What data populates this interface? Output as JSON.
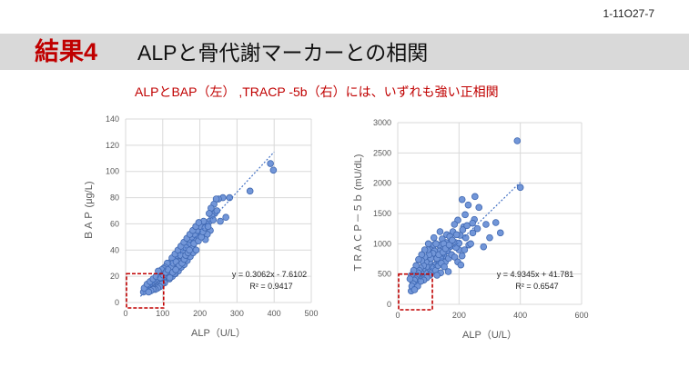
{
  "slide_id": "1-11O27-7",
  "title": {
    "tag": "結果4",
    "main": "ALPと骨代謝マーカーとの相関"
  },
  "subtitle": "ALPとBAP（左） ,TRACP -5b（右）には、いずれも強い正相関",
  "colors": {
    "accent_red": "#c00000",
    "point_fill": "#7296d8",
    "point_stroke": "#3f67b0",
    "trend": "#4472c4",
    "grid": "#d9d9d9"
  },
  "chart_data": [
    {
      "type": "scatter",
      "title": "",
      "xlabel": "ALP（U/L）",
      "ylabel": "ＢＡＰ (μg/L)",
      "xlim": [
        0,
        500
      ],
      "ylim": [
        0,
        140
      ],
      "xticks": [
        0,
        100,
        200,
        300,
        400,
        500
      ],
      "yticks": [
        0,
        20,
        40,
        60,
        80,
        100,
        120,
        140
      ],
      "trendline": {
        "slope": 0.3062,
        "intercept": -7.6102,
        "x_range": [
          40,
          400
        ]
      },
      "equation": "y = 0.3062x - 7.6102",
      "r2": "R² = 0.9417",
      "highlight_box": {
        "x": [
          0,
          100
        ],
        "y": [
          0,
          22
        ]
      },
      "points": [
        [
          390,
          106
        ],
        [
          398,
          101
        ],
        [
          335,
          85
        ],
        [
          280,
          80
        ],
        [
          262,
          80
        ],
        [
          250,
          79
        ],
        [
          244,
          79
        ],
        [
          238,
          75
        ],
        [
          230,
          72
        ],
        [
          240,
          68
        ],
        [
          232,
          66
        ],
        [
          226,
          62
        ],
        [
          218,
          60
        ],
        [
          212,
          58
        ],
        [
          205,
          52
        ],
        [
          198,
          56
        ],
        [
          192,
          50
        ],
        [
          188,
          47
        ],
        [
          182,
          44
        ],
        [
          176,
          42
        ],
        [
          170,
          45
        ],
        [
          165,
          40
        ],
        [
          160,
          37
        ],
        [
          156,
          35
        ],
        [
          150,
          33
        ],
        [
          145,
          31
        ],
        [
          140,
          29
        ],
        [
          136,
          27
        ],
        [
          132,
          26
        ],
        [
          128,
          25
        ],
        [
          124,
          24
        ],
        [
          120,
          28
        ],
        [
          116,
          22
        ],
        [
          112,
          21
        ],
        [
          108,
          20
        ],
        [
          104,
          19
        ],
        [
          100,
          18
        ],
        [
          96,
          17
        ],
        [
          92,
          16
        ],
        [
          88,
          18
        ],
        [
          84,
          15
        ],
        [
          80,
          14
        ],
        [
          76,
          13
        ],
        [
          72,
          14
        ],
        [
          68,
          12
        ],
        [
          64,
          11
        ],
        [
          60,
          12
        ],
        [
          56,
          10
        ],
        [
          52,
          9
        ],
        [
          48,
          8
        ],
        [
          110,
          26
        ],
        [
          115,
          29
        ],
        [
          122,
          31
        ],
        [
          130,
          33
        ],
        [
          138,
          36
        ],
        [
          146,
          38
        ],
        [
          154,
          40
        ],
        [
          162,
          42
        ],
        [
          170,
          48
        ],
        [
          178,
          50
        ],
        [
          186,
          52
        ],
        [
          194,
          55
        ],
        [
          202,
          58
        ],
        [
          210,
          62
        ],
        [
          100,
          24
        ],
        [
          95,
          21
        ],
        [
          90,
          22
        ],
        [
          85,
          19
        ],
        [
          80,
          17
        ],
        [
          75,
          16
        ],
        [
          70,
          15
        ],
        [
          65,
          14
        ],
        [
          60,
          13
        ],
        [
          55,
          12
        ],
        [
          118,
          18
        ],
        [
          126,
          20
        ],
        [
          134,
          22
        ],
        [
          142,
          24
        ],
        [
          150,
          27
        ],
        [
          158,
          29
        ],
        [
          166,
          32
        ],
        [
          174,
          35
        ],
        [
          182,
          38
        ],
        [
          190,
          40
        ],
        [
          228,
          55
        ],
        [
          220,
          52
        ],
        [
          236,
          63
        ],
        [
          215,
          48
        ],
        [
          105,
          15
        ],
        [
          98,
          14
        ],
        [
          92,
          12
        ],
        [
          86,
          11
        ],
        [
          80,
          10
        ],
        [
          74,
          10
        ],
        [
          68,
          9
        ],
        [
          62,
          8
        ],
        [
          112,
          30
        ],
        [
          106,
          27
        ],
        [
          102,
          26
        ],
        [
          97,
          25
        ],
        [
          125,
          34
        ],
        [
          133,
          37
        ],
        [
          141,
          40
        ],
        [
          149,
          43
        ],
        [
          157,
          46
        ],
        [
          165,
          49
        ],
        [
          173,
          52
        ],
        [
          181,
          55
        ],
        [
          189,
          58
        ],
        [
          197,
          61
        ],
        [
          120,
          22
        ],
        [
          124,
          27
        ],
        [
          128,
          30
        ],
        [
          132,
          22
        ],
        [
          136,
          31
        ],
        [
          144,
          28
        ],
        [
          148,
          36
        ],
        [
          152,
          30
        ],
        [
          158,
          33
        ],
        [
          162,
          36
        ],
        [
          168,
          38
        ],
        [
          172,
          40
        ],
        [
          184,
          45
        ],
        [
          196,
          47
        ],
        [
          204,
          50
        ],
        [
          208,
          54
        ],
        [
          214,
          57
        ],
        [
          222,
          58
        ],
        [
          246,
          70
        ],
        [
          255,
          62
        ],
        [
          270,
          65
        ],
        [
          225,
          68
        ],
        [
          50,
          11
        ],
        [
          58,
          14
        ],
        [
          66,
          16
        ],
        [
          74,
          18
        ],
        [
          82,
          20
        ],
        [
          88,
          24
        ],
        [
          94,
          19
        ],
        [
          101,
          21
        ],
        [
          108,
          23
        ],
        [
          114,
          25
        ],
        [
          119,
          19
        ],
        [
          127,
          23
        ],
        [
          135,
          25
        ]
      ]
    },
    {
      "type": "scatter",
      "title": "",
      "xlabel": "ALP（U/L）",
      "ylabel": "ＴＲＡＣＰ－５ｂ (mU/dL)",
      "xlim": [
        0,
        600
      ],
      "ylim": [
        0,
        3000
      ],
      "xticks": [
        0,
        200,
        400,
        600
      ],
      "yticks": [
        0,
        500,
        1000,
        1500,
        2000,
        2500,
        3000
      ],
      "trendline": {
        "slope": 4.9345,
        "intercept": 41.781,
        "x_range": [
          40,
          400
        ]
      },
      "equation": "y = 4.9345x + 41.781",
      "r2": "R² = 0.6547",
      "highlight_box": {
        "x": [
          0,
          110
        ],
        "y": [
          0,
          500
        ]
      },
      "points": [
        [
          390,
          2700
        ],
        [
          400,
          1930
        ],
        [
          252,
          1780
        ],
        [
          210,
          1730
        ],
        [
          265,
          1600
        ],
        [
          230,
          1640
        ],
        [
          335,
          1180
        ],
        [
          288,
          1320
        ],
        [
          250,
          1400
        ],
        [
          220,
          1480
        ],
        [
          196,
          1390
        ],
        [
          222,
          1100
        ],
        [
          204,
          1140
        ],
        [
          188,
          1020
        ],
        [
          200,
          900
        ],
        [
          210,
          800
        ],
        [
          245,
          1180
        ],
        [
          232,
          980
        ],
        [
          215,
          1280
        ],
        [
          175,
          1050
        ],
        [
          170,
          950
        ],
        [
          162,
          880
        ],
        [
          158,
          1020
        ],
        [
          150,
          800
        ],
        [
          146,
          920
        ],
        [
          140,
          760
        ],
        [
          136,
          880
        ],
        [
          130,
          700
        ],
        [
          126,
          820
        ],
        [
          122,
          650
        ],
        [
          118,
          980
        ],
        [
          114,
          780
        ],
        [
          110,
          620
        ],
        [
          106,
          900
        ],
        [
          104,
          700
        ],
        [
          100,
          560
        ],
        [
          96,
          760
        ],
        [
          94,
          620
        ],
        [
          90,
          520
        ],
        [
          86,
          680
        ],
        [
          82,
          580
        ],
        [
          80,
          460
        ],
        [
          76,
          520
        ],
        [
          72,
          420
        ],
        [
          68,
          380
        ],
        [
          64,
          460
        ],
        [
          60,
          340
        ],
        [
          56,
          300
        ],
        [
          52,
          260
        ],
        [
          48,
          380
        ],
        [
          44,
          220
        ],
        [
          180,
          1200
        ],
        [
          190,
          940
        ],
        [
          160,
          1150
        ],
        [
          155,
          700
        ],
        [
          145,
          1080
        ],
        [
          135,
          980
        ],
        [
          125,
          1000
        ],
        [
          120,
          880
        ],
        [
          115,
          840
        ],
        [
          108,
          760
        ],
        [
          102,
          820
        ],
        [
          98,
          900
        ],
        [
          92,
          700
        ],
        [
          88,
          780
        ],
        [
          84,
          640
        ],
        [
          78,
          720
        ],
        [
          74,
          600
        ],
        [
          70,
          560
        ],
        [
          66,
          520
        ],
        [
          62,
          480
        ],
        [
          58,
          420
        ],
        [
          54,
          400
        ],
        [
          50,
          340
        ],
        [
          46,
          300
        ],
        [
          112,
          540
        ],
        [
          116,
          600
        ],
        [
          124,
          560
        ],
        [
          132,
          640
        ],
        [
          142,
          680
        ],
        [
          152,
          620
        ],
        [
          166,
          760
        ],
        [
          176,
          820
        ],
        [
          186,
          780
        ],
        [
          196,
          700
        ],
        [
          206,
          650
        ],
        [
          165,
          540
        ],
        [
          140,
          520
        ],
        [
          128,
          480
        ],
        [
          105,
          480
        ],
        [
          95,
          440
        ],
        [
          85,
          400
        ],
        [
          75,
          380
        ],
        [
          65,
          300
        ],
        [
          55,
          240
        ],
        [
          200,
          1010
        ],
        [
          218,
          900
        ],
        [
          238,
          1000
        ],
        [
          260,
          1250
        ],
        [
          280,
          950
        ],
        [
          300,
          1100
        ],
        [
          320,
          1350
        ],
        [
          185,
          1320
        ],
        [
          170,
          1120
        ],
        [
          150,
          1000
        ],
        [
          138,
          1200
        ],
        [
          118,
          1100
        ],
        [
          100,
          1000
        ],
        [
          88,
          900
        ],
        [
          78,
          820
        ],
        [
          68,
          740
        ],
        [
          60,
          640
        ],
        [
          52,
          560
        ],
        [
          44,
          480
        ],
        [
          40,
          420
        ],
        [
          128,
          760
        ],
        [
          134,
          820
        ],
        [
          148,
          860
        ],
        [
          156,
          920
        ],
        [
          168,
          980
        ],
        [
          178,
          1060
        ],
        [
          192,
          1150
        ],
        [
          212,
          1230
        ],
        [
          226,
          1300
        ],
        [
          244,
          1340
        ]
      ]
    }
  ]
}
